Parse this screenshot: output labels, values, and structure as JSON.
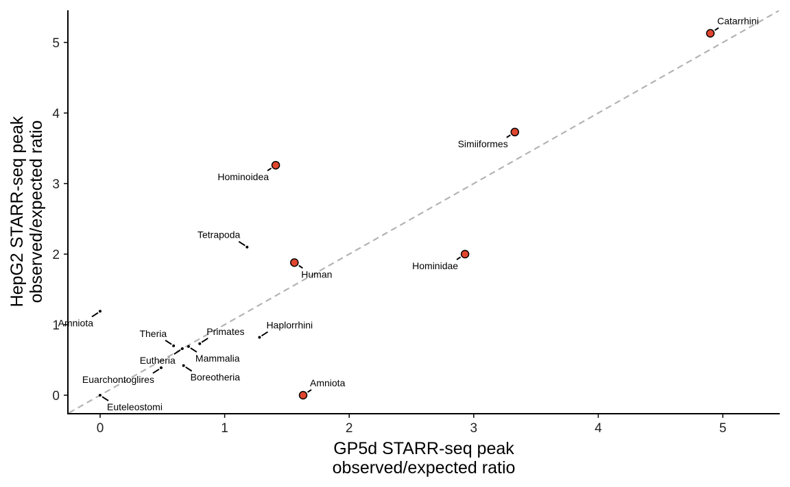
{
  "chart_data": {
    "type": "scatter",
    "xlabel_lines": [
      "GP5d STARR-seq peak",
      "observed/expected ratio"
    ],
    "ylabel_lines": [
      "HepG2 STARR-seq peak",
      "observed/expected ratio"
    ],
    "xlim": [
      -0.25,
      5.45
    ],
    "ylim": [
      -0.25,
      5.45
    ],
    "xticks": [
      0,
      1,
      2,
      3,
      4,
      5
    ],
    "yticks": [
      0,
      1,
      2,
      3,
      4,
      5
    ],
    "grid": false,
    "reference_line": {
      "style": "dashed",
      "color": "#b3b3b3",
      "slope": 1,
      "intercept": 0
    },
    "colors": {
      "highlight": "#e0462f",
      "point": "#000000",
      "axis": "#000000"
    },
    "points": [
      {
        "label": "Catarrhini",
        "x": 4.9,
        "y": 5.13,
        "highlight": true,
        "label_pos": "above-right"
      },
      {
        "label": "Simiiformes",
        "x": 3.33,
        "y": 3.73,
        "highlight": true,
        "label_pos": "below-left"
      },
      {
        "label": "Hominoidea",
        "x": 1.41,
        "y": 3.26,
        "highlight": true,
        "label_pos": "below-left"
      },
      {
        "label": "Hominidae",
        "x": 2.93,
        "y": 2.0,
        "highlight": true,
        "label_pos": "below-left"
      },
      {
        "label": "Human",
        "x": 1.56,
        "y": 1.88,
        "highlight": true,
        "label_pos": "below-right"
      },
      {
        "label": "Amniota",
        "x": 1.63,
        "y": 0.0,
        "highlight": true,
        "label_pos": "above-right"
      },
      {
        "label": "Tetrapoda",
        "x": 1.18,
        "y": 2.1,
        "highlight": false,
        "label_pos": "above-left"
      },
      {
        "label": "Amniota",
        "x": 0.0,
        "y": 1.19,
        "highlight": false,
        "label_pos": "below-left"
      },
      {
        "label": "Haplorrhini",
        "x": 1.28,
        "y": 0.82,
        "highlight": false,
        "label_pos": "above-right"
      },
      {
        "label": "Primates",
        "x": 0.8,
        "y": 0.73,
        "highlight": false,
        "label_pos": "above-right"
      },
      {
        "label": "Theria",
        "x": 0.59,
        "y": 0.7,
        "highlight": false,
        "label_pos": "above-left"
      },
      {
        "label": "Mammalia",
        "x": 0.71,
        "y": 0.69,
        "highlight": false,
        "label_pos": "below-right"
      },
      {
        "label": "Eutheria",
        "x": 0.66,
        "y": 0.66,
        "highlight": false,
        "label_pos": "below-left"
      },
      {
        "label": "Boreotheria",
        "x": 0.67,
        "y": 0.42,
        "highlight": false,
        "label_pos": "below-right"
      },
      {
        "label": "Euarchontoglires",
        "x": 0.49,
        "y": 0.39,
        "highlight": false,
        "label_pos": "below-left"
      },
      {
        "label": "Euteleostomi",
        "x": 0.0,
        "y": 0.0,
        "highlight": false,
        "label_pos": "below-right"
      }
    ]
  }
}
